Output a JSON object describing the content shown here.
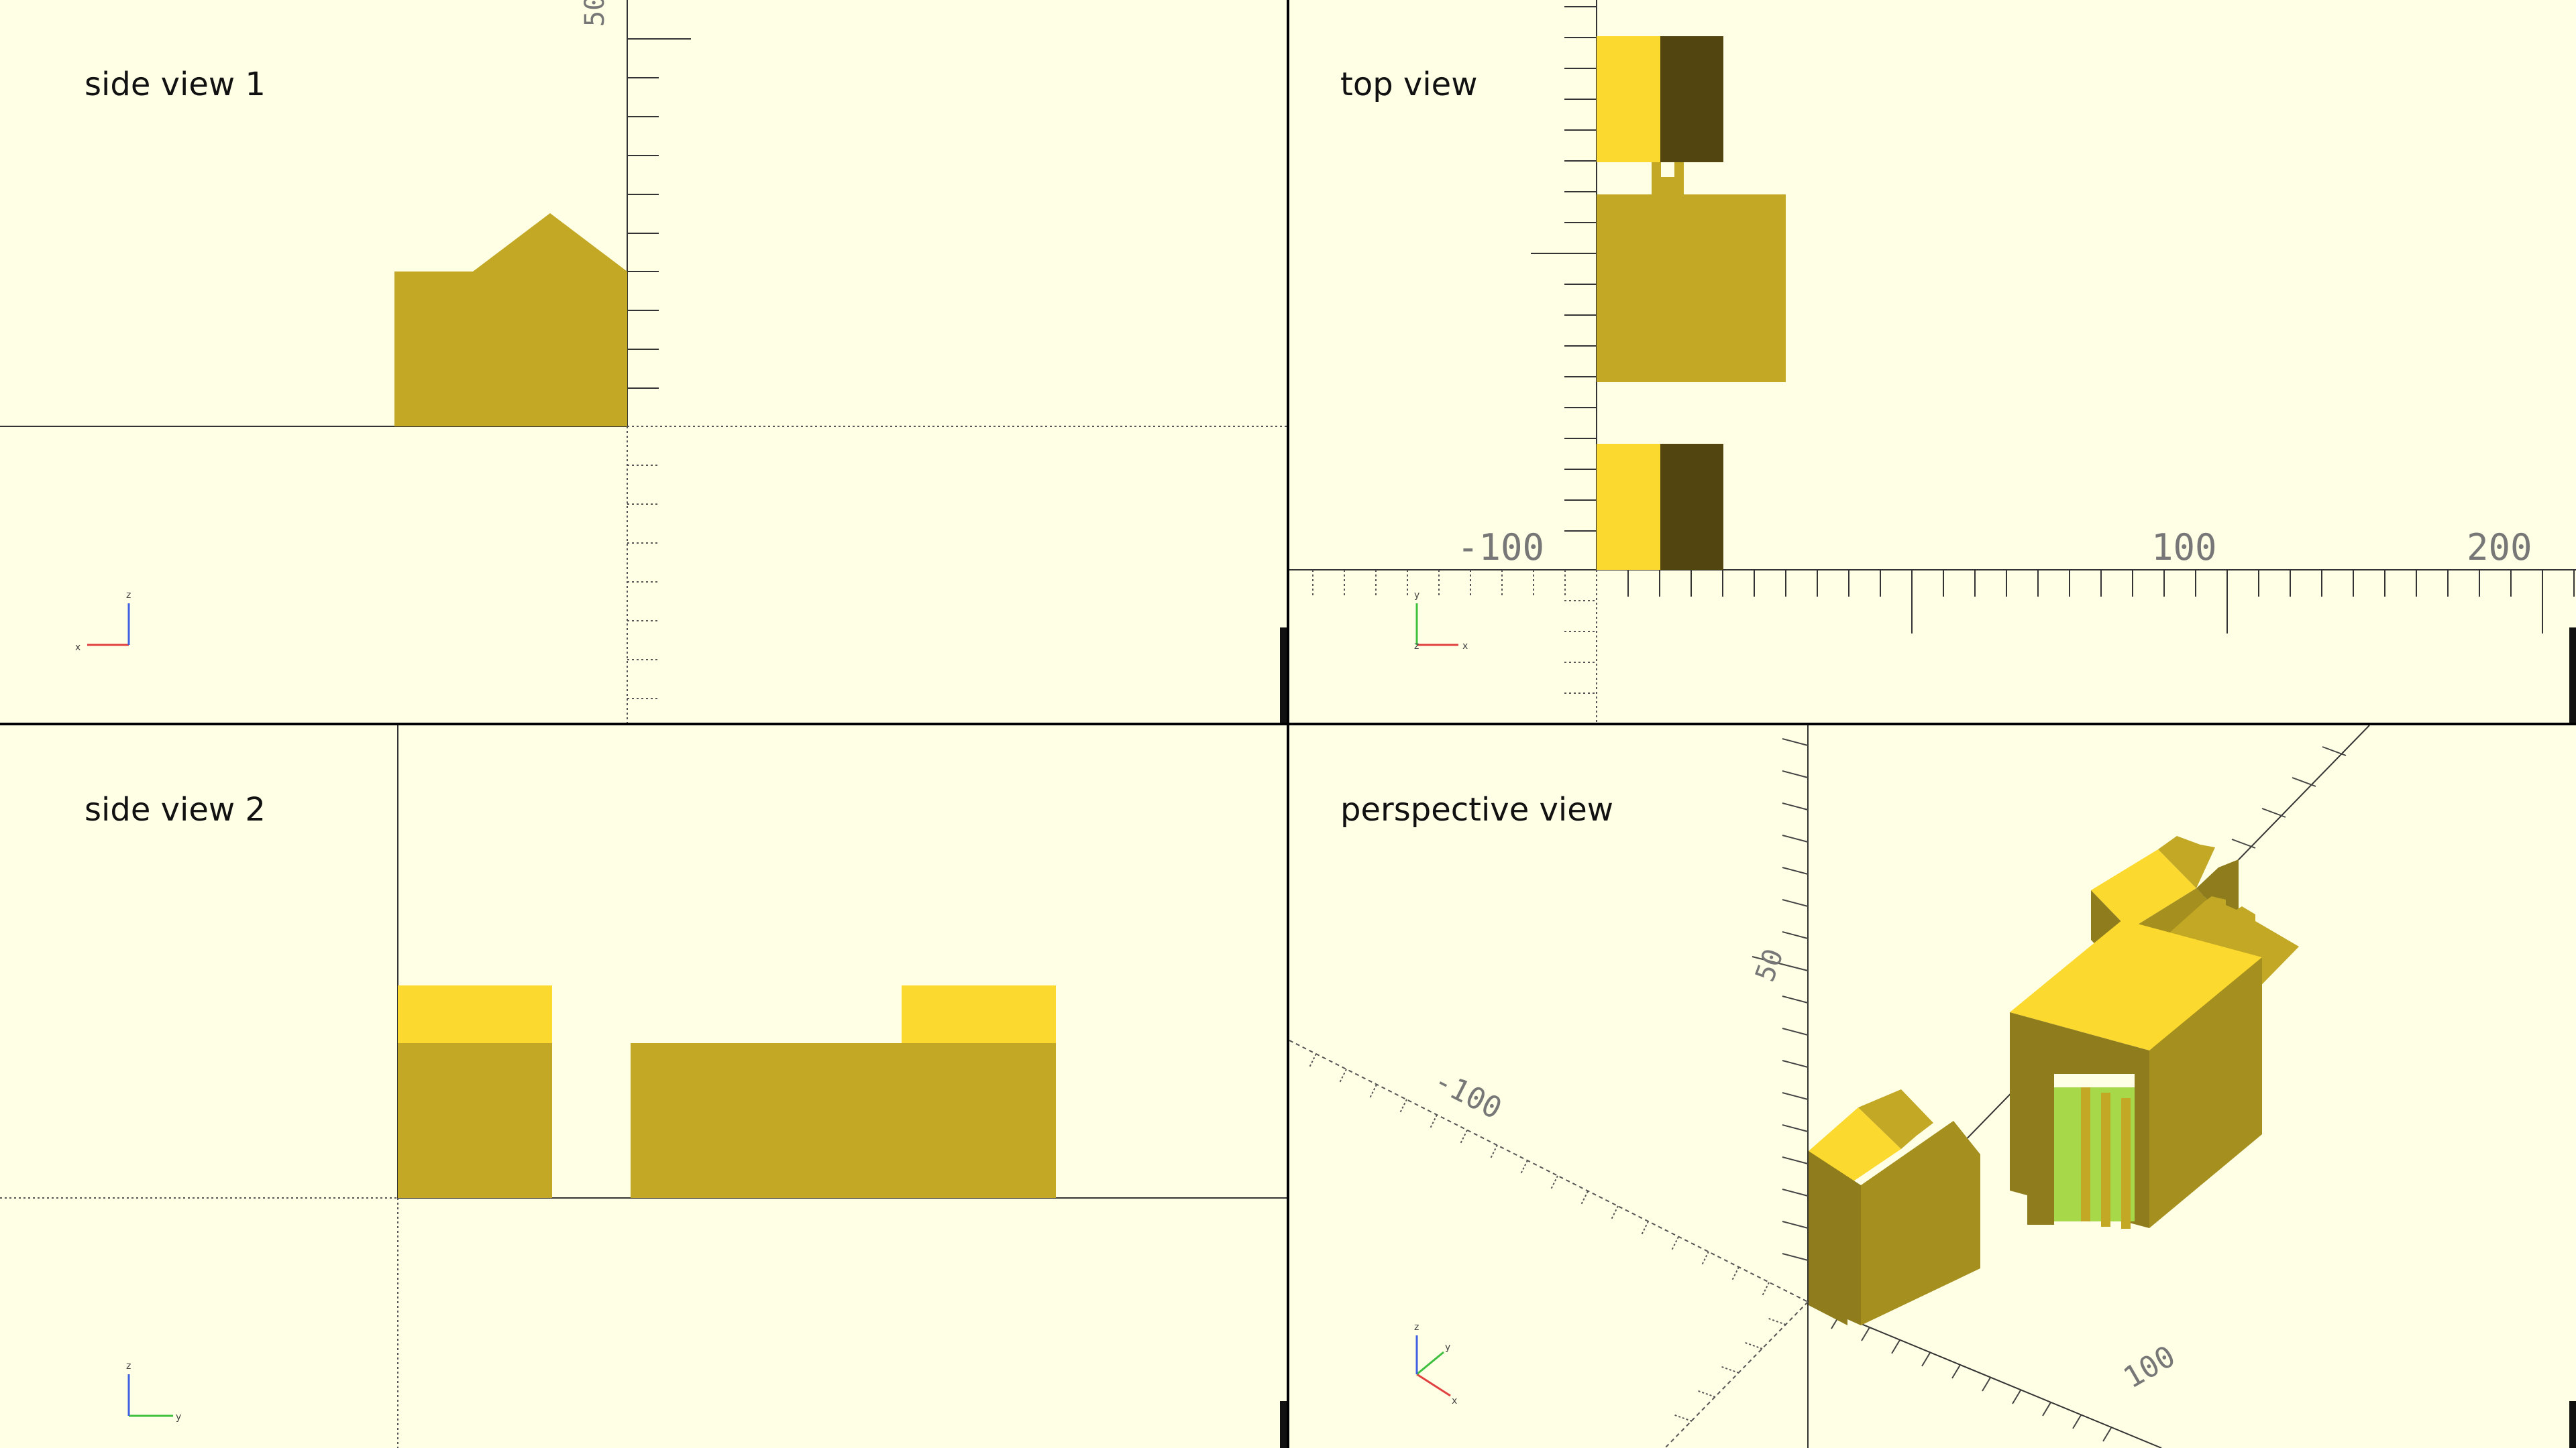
{
  "views": {
    "side1": {
      "label": "side view 1"
    },
    "top": {
      "label": "top view"
    },
    "side2": {
      "label": "side view 2"
    },
    "persp": {
      "label": "perspective view"
    }
  },
  "axis_labels": {
    "side1_vertical": "50",
    "top_x_neg": "-100",
    "top_x_100": "100",
    "top_x_200": "200",
    "persp_50": "50",
    "persp_neg100": "-100",
    "persp_100": "100"
  },
  "gizmo": {
    "x": "x",
    "y": "y",
    "z": "z"
  },
  "colors": {
    "background": "#ffffe5",
    "model_side": "#c2a824",
    "model_top": "#fcd92e",
    "model_dark": "#524510",
    "model_shadow": "#8e7c1d",
    "inner_green": "#a6d84a",
    "axis_x": "#e04040",
    "axis_y": "#40c040",
    "axis_z": "#4060e0"
  }
}
